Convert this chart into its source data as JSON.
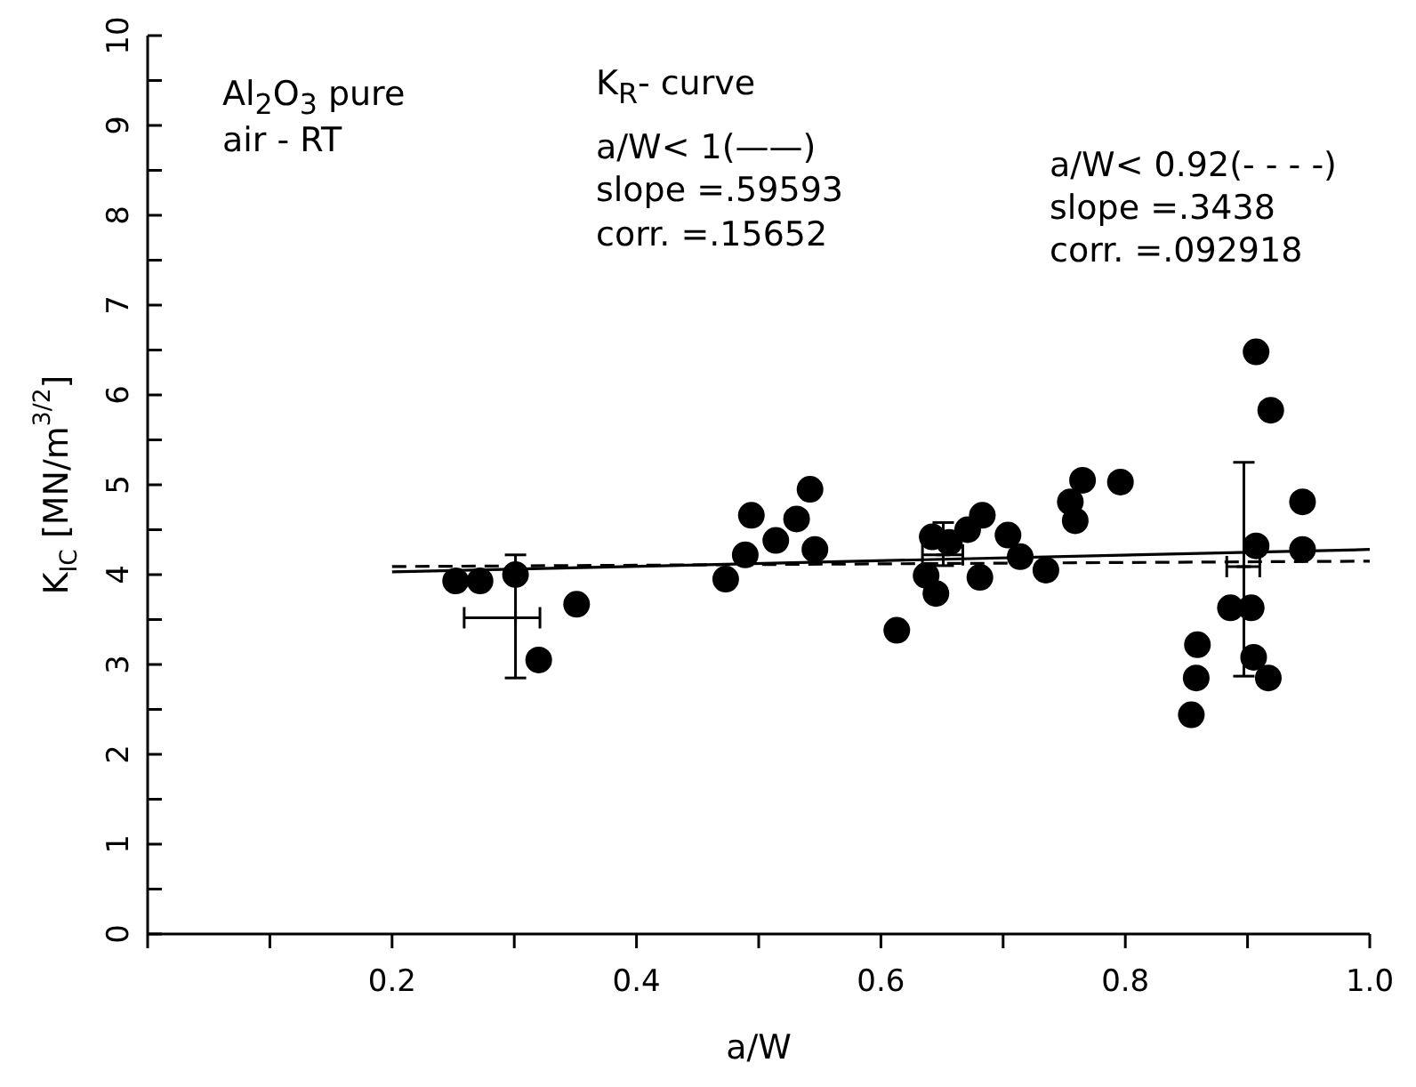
{
  "chart_data": {
    "type": "scatter",
    "xlabel": "a/W",
    "ylabel": "K$_{IC}$ [MN/m$^{3/2}$]",
    "annotations": [
      "Al$_{2}$O$_{3}$  pure",
      "air - RT",
      "K$_{R}$- curve",
      "a/W< 1(——)",
      "slope =.59593",
      "corr.   =.15652",
      "a/W< 0.92(- - - -)",
      "slope =.3438",
      "corr.   =.092918"
    ],
    "xlim": [
      0,
      1.0
    ],
    "xticks": [
      {
        "value": 0,
        "label": null
      },
      {
        "value": 0.1,
        "label": null
      },
      0.2,
      {
        "value": 0.3,
        "label": null
      },
      0.4,
      {
        "value": 0.5,
        "label": null
      },
      0.6,
      {
        "value": 0.7,
        "label": null
      },
      0.8,
      {
        "value": 0.9,
        "label": null
      },
      {
        "value": 1.0,
        "label": "1.0"
      }
    ],
    "ylim": [
      0,
      10
    ],
    "yticks": [
      0,
      {
        "value": 0.5,
        "label": null
      },
      1,
      {
        "value": 1.5,
        "label": null
      },
      2,
      {
        "value": 2.5,
        "label": null
      },
      3,
      {
        "value": 3.5,
        "label": null
      },
      4,
      {
        "value": 4.5,
        "label": null
      },
      5,
      {
        "value": 5.5,
        "label": null
      },
      6,
      {
        "value": 6.5,
        "label": null
      },
      7,
      {
        "value": 7.5,
        "label": null
      },
      8,
      {
        "value": 8.5,
        "label": null
      },
      9,
      {
        "value": 9.5,
        "label": null
      },
      10
    ],
    "grid": false,
    "legend": false,
    "series": [
      {
        "marker": "circle",
        "color": "#000000",
        "x": [
          0.252,
          0.272,
          0.301,
          0.32,
          0.351,
          0.473,
          0.489,
          0.494,
          0.514,
          0.531,
          0.542,
          0.546,
          0.613,
          0.637,
          0.642,
          0.645,
          0.656,
          0.671,
          0.681,
          0.683,
          0.704,
          0.714,
          0.735,
          0.755,
          0.759,
          0.765,
          0.796,
          0.854,
          0.858,
          0.859,
          0.886,
          0.903,
          0.905,
          0.907,
          0.907,
          0.917,
          0.919,
          0.945,
          0.945
        ],
        "values": [
          3.93,
          3.93,
          4.0,
          3.05,
          3.67,
          3.95,
          4.22,
          4.66,
          4.38,
          4.62,
          4.95,
          4.28,
          3.38,
          3.99,
          4.42,
          3.79,
          4.36,
          4.5,
          3.97,
          4.66,
          4.44,
          4.2,
          4.05,
          4.81,
          4.6,
          5.05,
          5.03,
          2.44,
          2.85,
          3.22,
          3.63,
          3.63,
          3.08,
          4.32,
          6.48,
          2.85,
          5.83,
          4.81,
          4.28
        ]
      },
      {
        "marker": "cross",
        "color": "#000000",
        "x": [
          0.301,
          0.651,
          0.897
        ],
        "values": [
          3.52,
          4.22,
          4.09
        ],
        "errors": [
          [
            2.85,
            4.22
          ],
          [
            4.1,
            4.58
          ],
          [
            2.87,
            5.25
          ]
        ],
        "xerrors": [
          [
            0.259,
            0.321
          ],
          [
            0.634,
            0.667
          ],
          [
            0.883,
            0.91
          ]
        ]
      },
      {
        "type": "line",
        "line_style": "solid",
        "color": "#000000",
        "x": [
          0.2,
          1.0
        ],
        "values": [
          4.03,
          4.28
        ]
      },
      {
        "type": "line",
        "line_style": "dashed",
        "color": "#000000",
        "x": [
          0.2,
          1.0
        ],
        "values": [
          4.09,
          4.15
        ]
      }
    ]
  }
}
